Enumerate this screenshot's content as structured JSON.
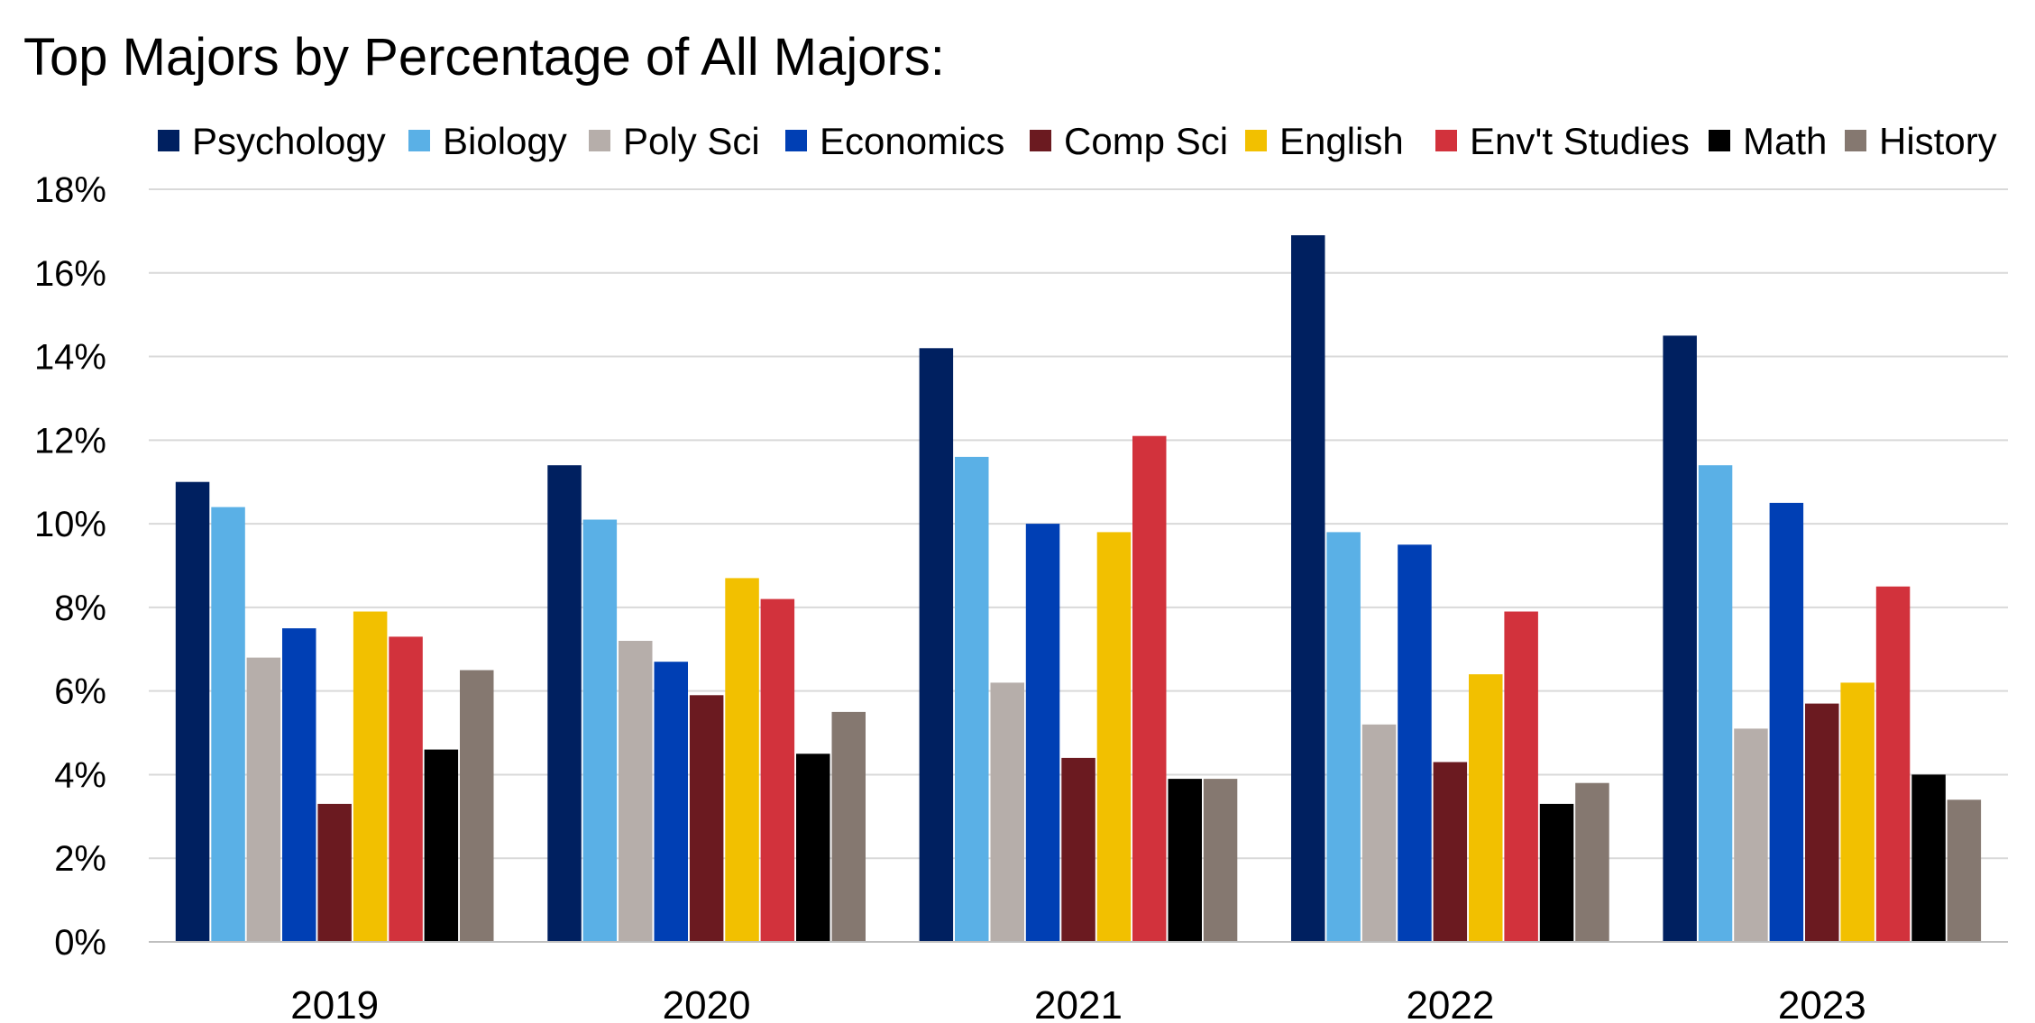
{
  "chart_data": {
    "type": "bar",
    "title": "Top Majors by Percentage of All Majors:",
    "categories": [
      "2019",
      "2020",
      "2021",
      "2022",
      "2023"
    ],
    "ylim": [
      0,
      18
    ],
    "yticks": [
      "0%",
      "2%",
      "4%",
      "6%",
      "8%",
      "10%",
      "12%",
      "14%",
      "16%",
      "18%"
    ],
    "grid": true,
    "legend_position": "top",
    "series": [
      {
        "name": "Psychology",
        "color": "#002060",
        "values": [
          11.0,
          11.4,
          14.2,
          16.9,
          14.5
        ]
      },
      {
        "name": "Biology",
        "color": "#5AB0E6",
        "values": [
          10.4,
          10.1,
          11.6,
          9.8,
          11.4
        ]
      },
      {
        "name": "Poly Sci",
        "color": "#B6AEAA",
        "values": [
          6.8,
          7.2,
          6.2,
          5.2,
          5.1
        ]
      },
      {
        "name": "Economics",
        "color": "#003FB4",
        "values": [
          7.5,
          6.7,
          10.0,
          9.5,
          10.5
        ]
      },
      {
        "name": "Comp Sci",
        "color": "#6B1A20",
        "values": [
          3.3,
          5.9,
          4.4,
          4.3,
          5.7
        ]
      },
      {
        "name": "English",
        "color": "#F2C000",
        "values": [
          7.9,
          8.7,
          9.8,
          6.4,
          6.2
        ]
      },
      {
        "name": "Env't Studies",
        "color": "#D2323C",
        "values": [
          7.3,
          8.2,
          12.1,
          7.9,
          8.5
        ]
      },
      {
        "name": "Math",
        "color": "#000000",
        "values": [
          4.6,
          4.5,
          3.9,
          3.3,
          4.0
        ]
      },
      {
        "name": "History",
        "color": "#857870",
        "values": [
          6.5,
          5.5,
          3.9,
          3.8,
          3.4
        ]
      }
    ]
  }
}
